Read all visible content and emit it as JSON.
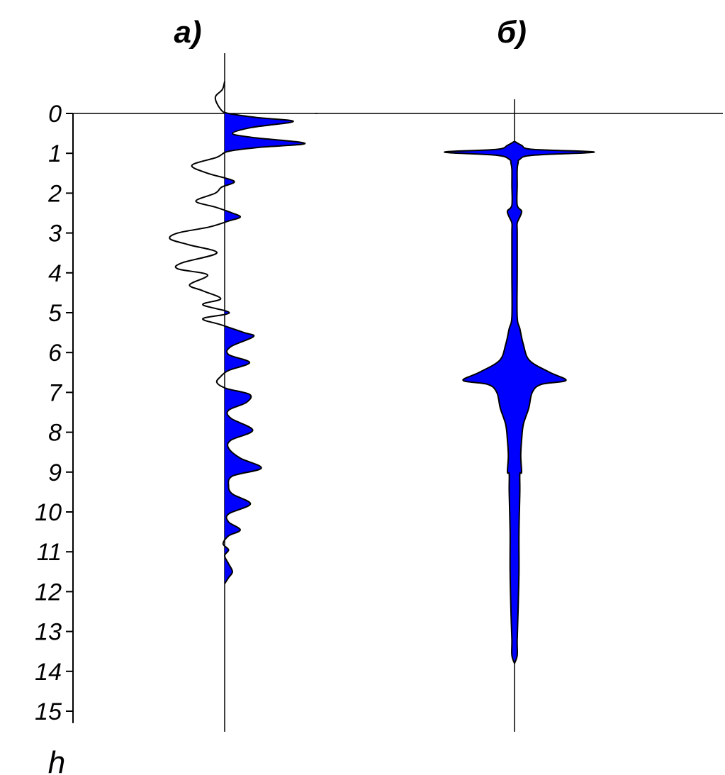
{
  "chart_data": {
    "type": "area",
    "y_axis": {
      "label": "h",
      "range": [
        0,
        15
      ],
      "ticks": [
        0,
        1,
        2,
        3,
        4,
        5,
        6,
        7,
        8,
        9,
        10,
        11,
        12,
        13,
        14,
        15
      ],
      "tick_labels": [
        "0",
        "1",
        "2",
        "3",
        "4",
        "5",
        "6",
        "7",
        "8",
        "9",
        "10",
        "11",
        "12",
        "13",
        "14",
        "15"
      ],
      "inverted": true
    },
    "panels": [
      {
        "label": "а)",
        "kind": "wiggle-trace",
        "fill_color": "#0000ff",
        "fill_positive": true,
        "h": [
          -0.8,
          -0.6,
          -0.4,
          -0.1,
          0.0,
          0.1,
          0.2,
          0.35,
          0.5,
          0.6,
          0.75,
          0.85,
          0.95,
          1.1,
          1.3,
          1.5,
          1.7,
          1.85,
          2.0,
          2.2,
          2.35,
          2.5,
          2.6,
          2.7,
          2.85,
          3.0,
          3.15,
          3.3,
          3.5,
          3.75,
          3.9,
          4.05,
          4.3,
          4.45,
          4.65,
          4.8,
          5.0,
          5.15,
          5.3,
          5.5,
          5.6,
          5.85,
          6.05,
          6.25,
          6.45,
          6.6,
          6.75,
          6.9,
          7.05,
          7.25,
          7.45,
          7.65,
          7.95,
          8.2,
          8.4,
          8.65,
          8.9,
          9.1,
          9.35,
          9.55,
          9.8,
          10.05,
          10.25,
          10.45,
          10.6,
          10.8,
          10.95,
          11.1,
          11.3,
          11.5,
          11.65,
          11.8
        ],
        "amplitude": [
          0.0,
          -0.03,
          -0.12,
          -0.05,
          0.05,
          0.4,
          0.88,
          0.35,
          0.1,
          0.35,
          1.03,
          0.45,
          0.05,
          -0.1,
          -0.42,
          -0.22,
          0.12,
          -0.04,
          -0.12,
          -0.37,
          -0.12,
          0.1,
          0.2,
          0.05,
          -0.2,
          -0.6,
          -0.7,
          -0.45,
          -0.1,
          -0.55,
          -0.6,
          -0.22,
          -0.45,
          -0.28,
          -0.05,
          -0.28,
          0.06,
          -0.28,
          -0.05,
          0.25,
          0.37,
          0.08,
          0.05,
          0.32,
          0.05,
          -0.05,
          -0.1,
          0.02,
          0.32,
          0.28,
          0.05,
          0.08,
          0.36,
          0.08,
          0.05,
          0.2,
          0.47,
          0.1,
          0.05,
          0.1,
          0.33,
          0.05,
          0.05,
          0.2,
          0.05,
          -0.02,
          0.05,
          0.0,
          0.05,
          0.1,
          0.05,
          0.0
        ]
      },
      {
        "label": "б)",
        "kind": "symmetric-envelope",
        "fill_color": "#0000ff",
        "h": [
          0.7,
          0.8,
          0.9,
          0.97,
          1.05,
          1.15,
          1.25,
          1.4,
          1.8,
          2.3,
          2.45,
          2.6,
          2.75,
          3.0,
          4.0,
          5.1,
          5.4,
          5.8,
          6.2,
          6.5,
          6.7,
          6.8,
          7.0,
          7.4,
          7.8,
          8.2,
          8.6,
          9.0,
          9.05,
          9.5,
          10.5,
          11.5,
          12.5,
          13.2,
          13.6,
          13.8
        ],
        "half_width": [
          0.0,
          0.08,
          0.2,
          0.9,
          0.2,
          0.06,
          0.04,
          0.03,
          0.03,
          0.03,
          0.08,
          0.06,
          0.03,
          0.03,
          0.03,
          0.03,
          0.06,
          0.1,
          0.17,
          0.4,
          0.58,
          0.3,
          0.2,
          0.16,
          0.1,
          0.08,
          0.07,
          0.08,
          0.06,
          0.06,
          0.05,
          0.05,
          0.04,
          0.03,
          0.03,
          0.0
        ]
      }
    ]
  }
}
